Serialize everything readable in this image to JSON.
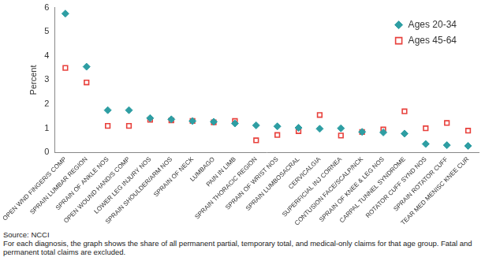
{
  "chart_data": {
    "type": "scatter",
    "y_label": "Percent",
    "categories": [
      "OPEN WND FINGER/S COMP",
      "SPRAIN LUMBAR REGION",
      "SPRAIN OF ANKLE NOS",
      "OPEN WOUND HAND/S COMP",
      "LOWER LEG INJURY NOS",
      "SPRAIN SHOULDER/ARM NOS",
      "SPRAIN OF NECK",
      "LUMBAGO",
      "PAIN IN LIMB",
      "SPRAIN THORACIC REGION",
      "SPRAIN OF WRIST NOS",
      "SPRAIN LUMBOSACRAL",
      "CERVICALGIA",
      "SUPERFICIAL INJ CORNEA",
      "CONTUSION FACE/SCALP/NCK",
      "SPRAIN OF KNEE & LEG NOS",
      "CARPAL TUNNEL SYNDROME",
      "ROTATOR CUFF SYND NOS",
      "SPRAIN ROTATOR CUFF",
      "TEAR MED MENISC KNEE CUR"
    ],
    "series": [
      {
        "name": "Ages 20-34",
        "color": "#2e9ea3",
        "marker": "diamond",
        "values": [
          5.75,
          3.55,
          1.75,
          1.75,
          1.42,
          1.37,
          1.3,
          1.27,
          1.2,
          1.12,
          1.08,
          1.02,
          0.98,
          1.0,
          0.85,
          0.83,
          0.78,
          0.35,
          0.3,
          0.27
        ]
      },
      {
        "name": "Ages 45-64",
        "color": "#e8413c",
        "marker": "square",
        "values": [
          3.5,
          2.9,
          1.1,
          1.1,
          1.35,
          1.33,
          1.3,
          1.25,
          1.3,
          0.5,
          0.72,
          0.88,
          1.55,
          0.7,
          0.85,
          0.95,
          1.7,
          1.0,
          1.22,
          0.9
        ]
      }
    ],
    "ylim": [
      0,
      6
    ],
    "yticks": [
      0,
      1,
      2,
      3,
      4,
      5,
      6
    ],
    "grid": false,
    "legend": "upper right",
    "annotations": [
      "Source:  NCCI",
      "For each diagnosis, the graph shows the share of all permanent partial, temporary total, and medical-only claims for that age group. Fatal and permanent total claims are excluded."
    ]
  }
}
